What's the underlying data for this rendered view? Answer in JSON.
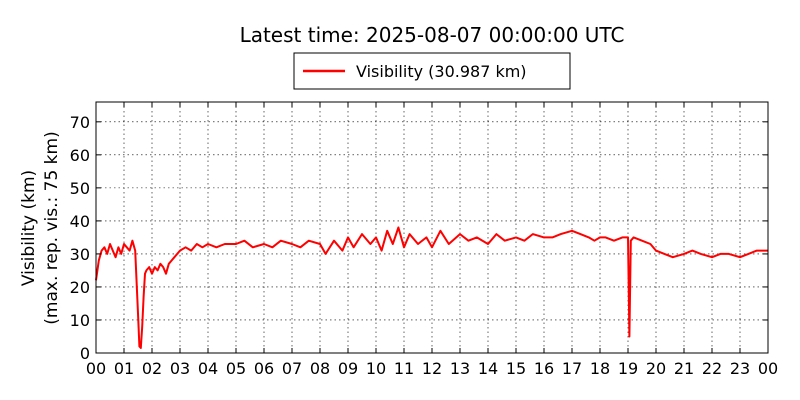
{
  "chart_data": {
    "type": "line",
    "title": "Latest time: 2025-08-07 00:00:00 UTC",
    "ylabel_lines": [
      "Visibility (km)",
      "(max. rep. vis.: 75 km)"
    ],
    "xlabel": "",
    "xlim": [
      0,
      24
    ],
    "ylim": [
      0,
      76
    ],
    "grid": true,
    "legend_position": "top-center",
    "x_tick_values": [
      0,
      1,
      2,
      3,
      4,
      5,
      6,
      7,
      8,
      9,
      10,
      11,
      12,
      13,
      14,
      15,
      16,
      17,
      18,
      19,
      20,
      21,
      22,
      23,
      24
    ],
    "x_tick_labels": [
      "00",
      "01",
      "02",
      "03",
      "04",
      "05",
      "06",
      "07",
      "08",
      "09",
      "10",
      "11",
      "12",
      "13",
      "14",
      "15",
      "16",
      "17",
      "18",
      "19",
      "20",
      "21",
      "22",
      "23",
      "00"
    ],
    "y_tick_values": [
      0,
      10,
      20,
      30,
      40,
      50,
      60,
      70
    ],
    "y_tick_labels": [
      "0",
      "10",
      "20",
      "30",
      "40",
      "50",
      "60",
      "70"
    ],
    "series": [
      {
        "name": "Visibility (30.987 km)",
        "color": "#ff0000",
        "x": [
          0.0,
          0.1,
          0.2,
          0.3,
          0.4,
          0.5,
          0.6,
          0.7,
          0.8,
          0.9,
          1.0,
          1.1,
          1.2,
          1.3,
          1.4,
          1.5,
          1.55,
          1.6,
          1.65,
          1.7,
          1.75,
          1.8,
          1.9,
          2.0,
          2.1,
          2.2,
          2.3,
          2.4,
          2.5,
          2.6,
          2.7,
          2.8,
          2.9,
          3.0,
          3.2,
          3.4,
          3.6,
          3.8,
          4.0,
          4.3,
          4.6,
          5.0,
          5.3,
          5.6,
          6.0,
          6.3,
          6.6,
          7.0,
          7.3,
          7.6,
          8.0,
          8.2,
          8.5,
          8.8,
          9.0,
          9.2,
          9.5,
          9.8,
          10.0,
          10.2,
          10.4,
          10.6,
          10.8,
          11.0,
          11.2,
          11.5,
          11.8,
          12.0,
          12.3,
          12.6,
          13.0,
          13.3,
          13.6,
          14.0,
          14.3,
          14.6,
          15.0,
          15.3,
          15.6,
          16.0,
          16.3,
          16.6,
          17.0,
          17.3,
          17.6,
          17.8,
          18.0,
          18.2,
          18.5,
          18.8,
          19.0,
          19.05,
          19.1,
          19.2,
          19.5,
          19.8,
          20.0,
          20.3,
          20.6,
          21.0,
          21.3,
          21.6,
          22.0,
          22.3,
          22.6,
          23.0,
          23.3,
          23.6,
          24.0
        ],
        "values": [
          22,
          28,
          31,
          32,
          30,
          33,
          31,
          29,
          32,
          30,
          33,
          32,
          31,
          34,
          31,
          12,
          2,
          1.5,
          8,
          17,
          24,
          25,
          26,
          24,
          26,
          25,
          27,
          26,
          24,
          27,
          28,
          29,
          30,
          31,
          32,
          31,
          33,
          32,
          33,
          32,
          33,
          33,
          34,
          32,
          33,
          32,
          34,
          33,
          32,
          34,
          33,
          30,
          34,
          31,
          35,
          32,
          36,
          33,
          35,
          31,
          37,
          33,
          38,
          32,
          36,
          33,
          35,
          32,
          37,
          33,
          36,
          34,
          35,
          33,
          36,
          34,
          35,
          34,
          36,
          35,
          35,
          36,
          37,
          36,
          35,
          34,
          35,
          35,
          34,
          35,
          35,
          5,
          34,
          35,
          34,
          33,
          31,
          30,
          29,
          30,
          31,
          30,
          29,
          30,
          30,
          29,
          30,
          31,
          31
        ]
      }
    ]
  }
}
